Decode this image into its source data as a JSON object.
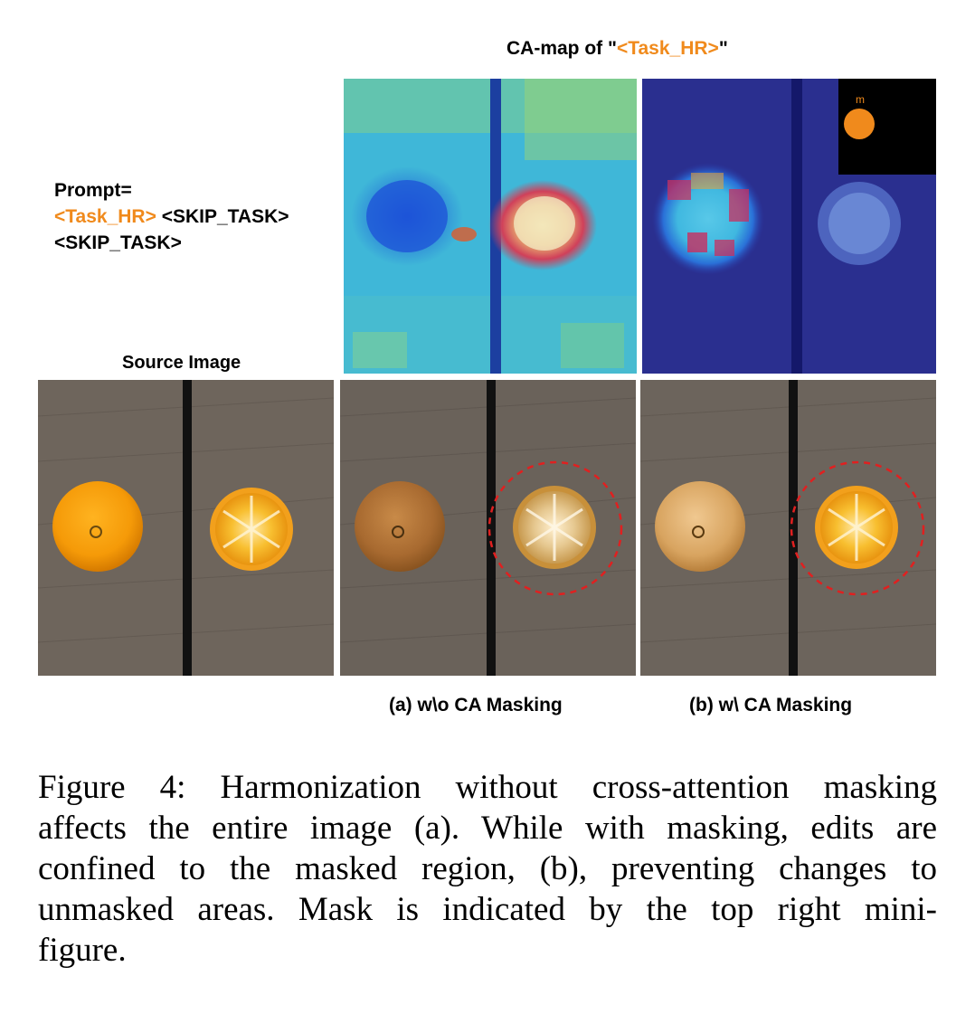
{
  "camap_title": {
    "prefix": "CA-map of \"",
    "token": "<Task_HR>",
    "suffix": "\""
  },
  "prompt": {
    "label": "Prompt=",
    "token_hr": "<Task_HR>",
    "skip1": "<SKIP_TASK>",
    "skip2": "<SKIP_TASK>"
  },
  "source_label": "Source Image",
  "mask_inset_label": "m",
  "label_a": "(a) w\\o CA Masking",
  "label_b": "(b) w\\ CA Masking",
  "caption_lines": [
    "Figure 4: Harmonization without cross-attention masking",
    "affects the entire image (a). While with masking, edits are",
    "confined to the masked region, (b), preventing changes to",
    "unmasked areas. Mask is indicated by the top right mini-",
    "figure."
  ],
  "colors": {
    "token_orange": "#f08a1c",
    "dashed_circle": "#e02020",
    "wood": "#6e655c",
    "mask_black": "#000000"
  }
}
